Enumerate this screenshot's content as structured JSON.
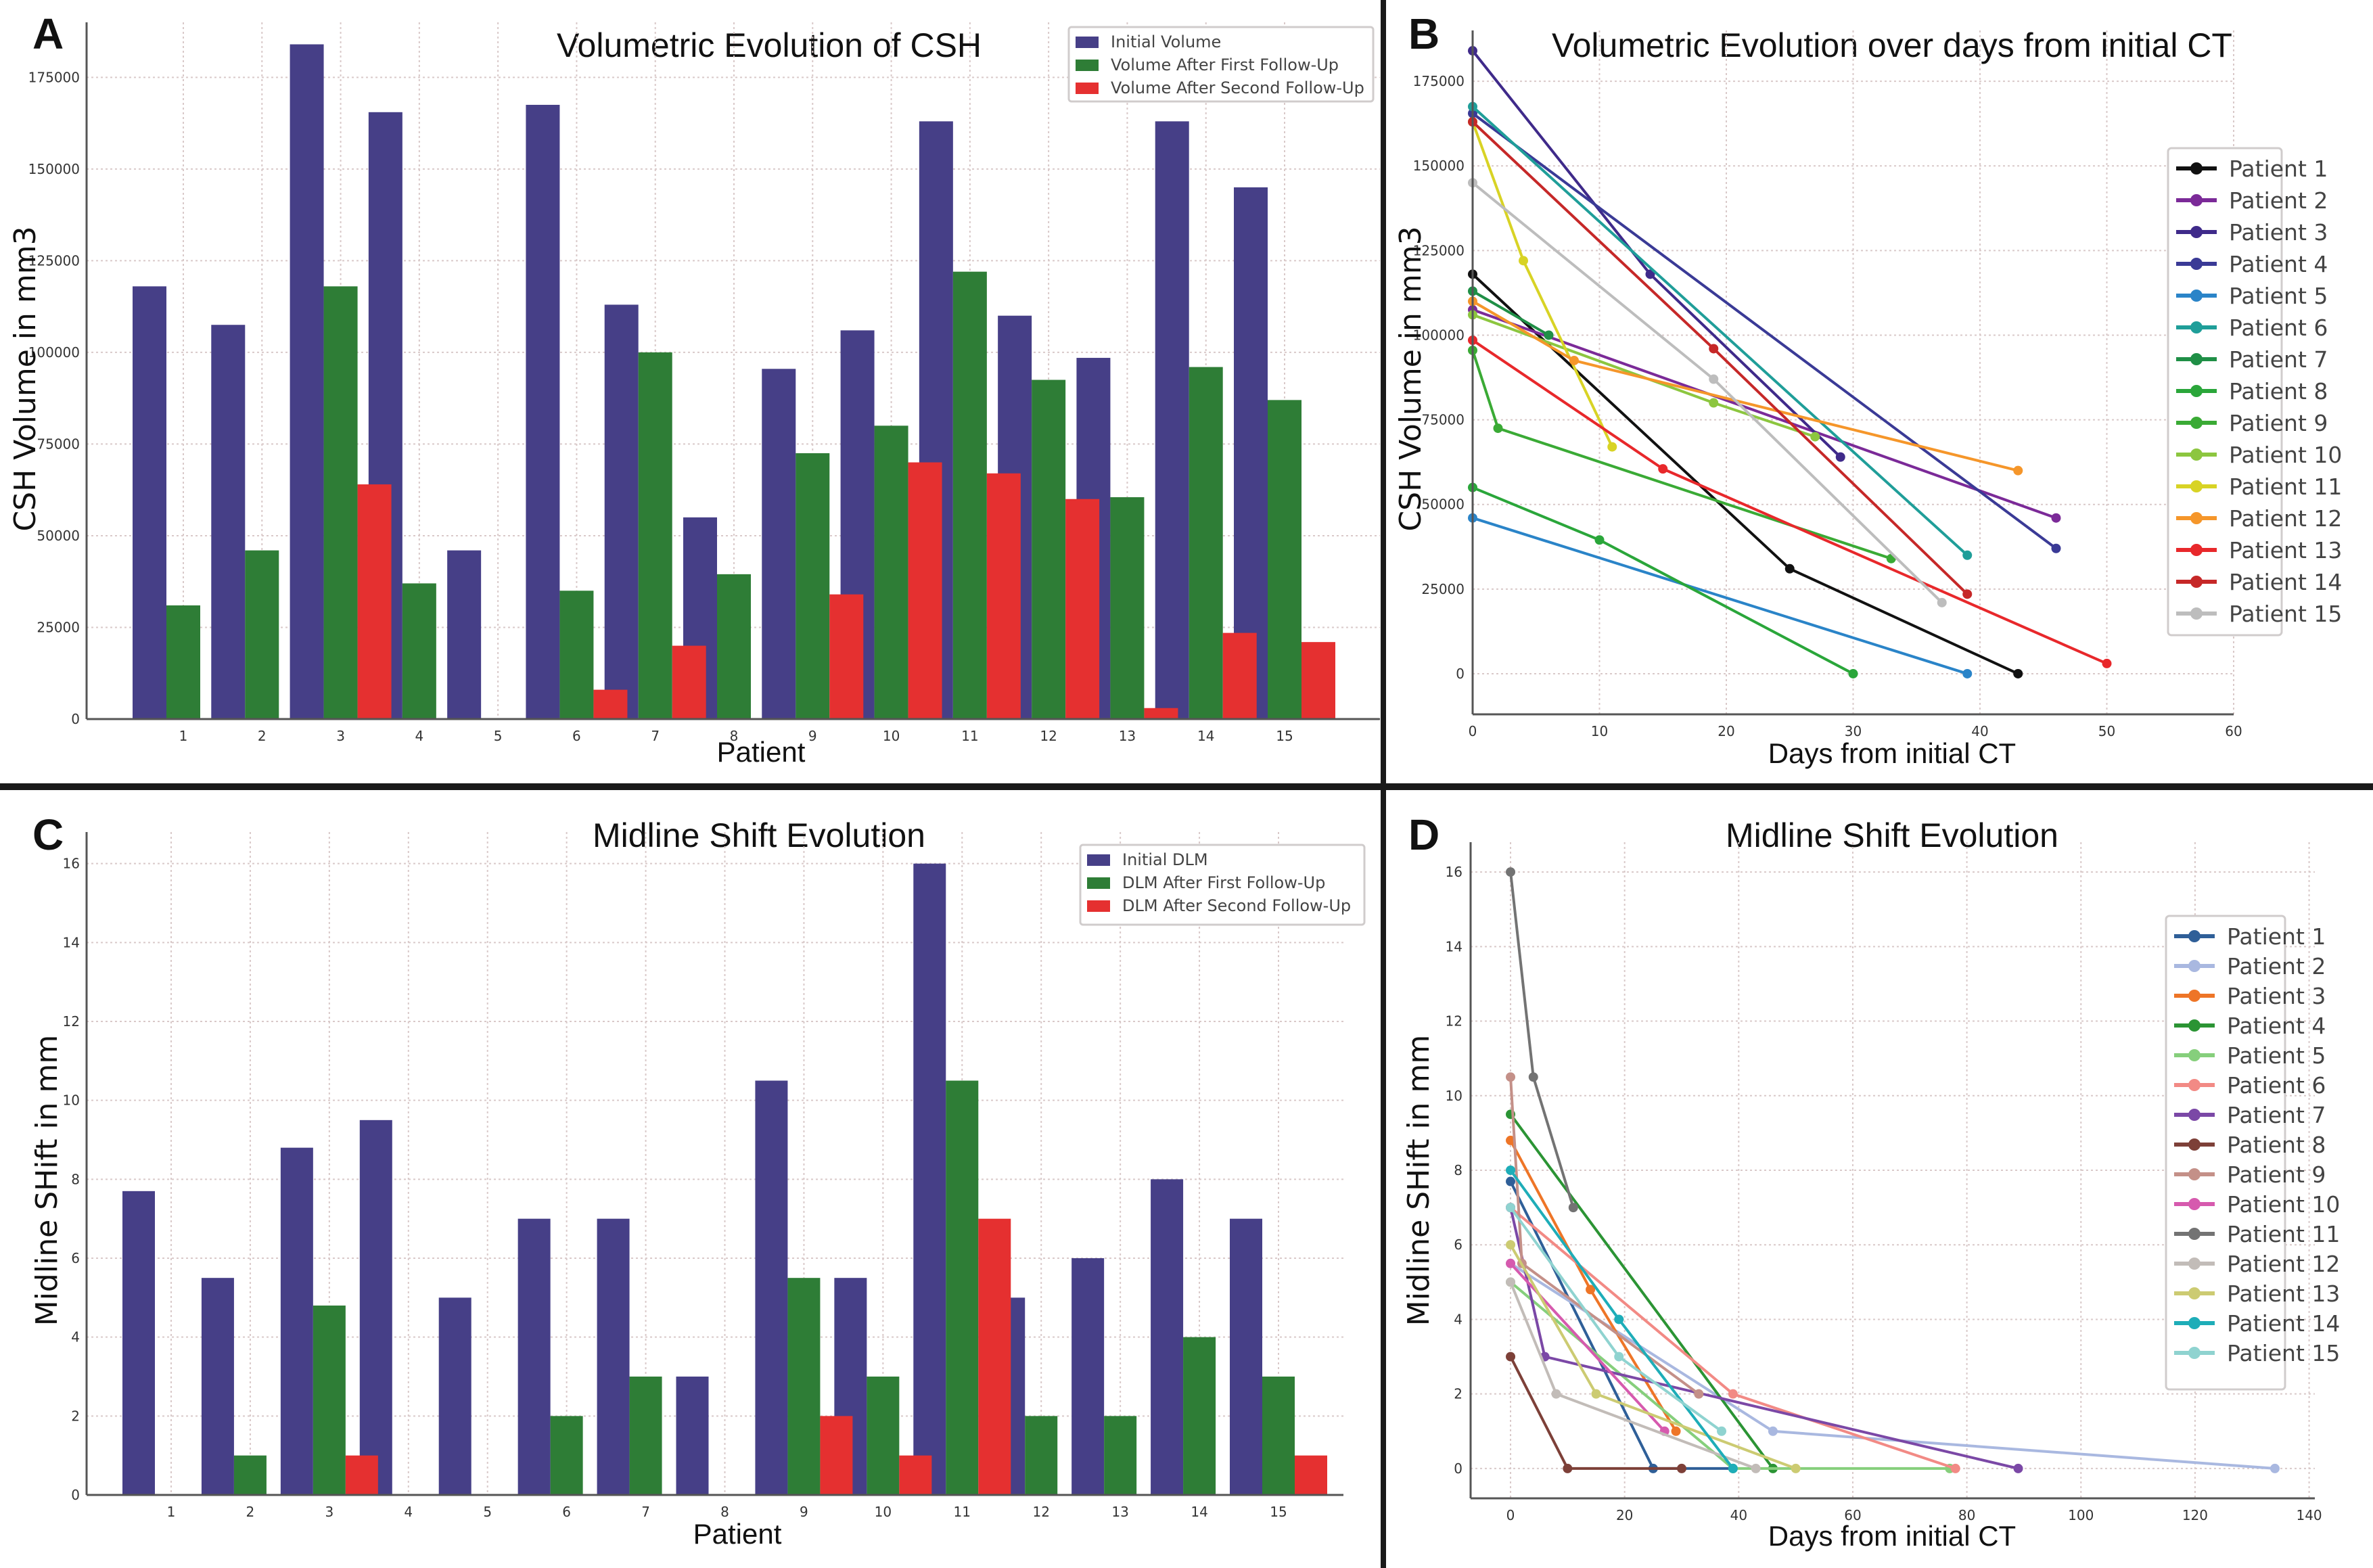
{
  "figure": {
    "panels": [
      "A",
      "B",
      "C",
      "D"
    ]
  },
  "chart_data": [
    {
      "panel": "A",
      "type": "bar",
      "title": "Volumetric Evolution of CSH",
      "xlabel": "Patient",
      "ylabel": "CSH Volume in mm3",
      "categories": [
        "1",
        "2",
        "3",
        "4",
        "5",
        "6",
        "7",
        "8",
        "9",
        "10",
        "11",
        "12",
        "13",
        "14",
        "15"
      ],
      "yticks": [
        0,
        25000,
        50000,
        75000,
        100000,
        125000,
        150000,
        175000
      ],
      "ylim": [
        0,
        190000
      ],
      "grid": true,
      "legend_position": "top-right",
      "series": [
        {
          "name": "Initial Volume",
          "color": "#463f87",
          "values": [
            118000,
            107500,
            184000,
            165500,
            46000,
            167500,
            113000,
            55000,
            95500,
            106000,
            163000,
            110000,
            98500,
            163000,
            145000
          ]
        },
        {
          "name": "Volume After First Follow-Up",
          "color": "#2e7d36",
          "values": [
            31000,
            46000,
            118000,
            37000,
            0,
            35000,
            100000,
            39500,
            72500,
            80000,
            122000,
            92500,
            60500,
            96000,
            87000
          ]
        },
        {
          "name": "Volume After Second Follow-Up",
          "color": "#e53030",
          "values": [
            0,
            0,
            64000,
            0,
            0,
            8000,
            20000,
            0,
            34000,
            70000,
            67000,
            60000,
            3000,
            23500,
            21000
          ]
        }
      ]
    },
    {
      "panel": "B",
      "type": "line",
      "title": "Volumetric Evolution over days from initial CT",
      "xlabel": "Days from initial CT",
      "ylabel": "CSH Volume in mm3",
      "xticks": [
        0,
        10,
        20,
        30,
        40,
        50,
        60
      ],
      "yticks": [
        0,
        25000,
        50000,
        75000,
        100000,
        125000,
        150000,
        175000
      ],
      "xlim": [
        0,
        60
      ],
      "ylim": [
        -12000,
        190000
      ],
      "grid": true,
      "legend_position": "center-right",
      "series": [
        {
          "name": "Patient 1",
          "color": "#111111",
          "points": [
            [
              0,
              118000
            ],
            [
              25,
              31000
            ],
            [
              43,
              0
            ]
          ]
        },
        {
          "name": "Patient 2",
          "color": "#7b2a98",
          "points": [
            [
              0,
              107500
            ],
            [
              46,
              46000
            ]
          ]
        },
        {
          "name": "Patient 3",
          "color": "#3f2a8a",
          "points": [
            [
              0,
              184000
            ],
            [
              14,
              118000
            ],
            [
              29,
              64000
            ]
          ]
        },
        {
          "name": "Patient 4",
          "color": "#3a3a96",
          "points": [
            [
              0,
              165500
            ],
            [
              46,
              37000
            ]
          ]
        },
        {
          "name": "Patient 5",
          "color": "#2a84c8",
          "points": [
            [
              0,
              46000
            ],
            [
              39,
              0
            ]
          ]
        },
        {
          "name": "Patient 6",
          "color": "#1f9e99",
          "points": [
            [
              0,
              167500
            ],
            [
              39,
              35000
            ]
          ]
        },
        {
          "name": "Patient 7",
          "color": "#1f8f46",
          "points": [
            [
              0,
              113000
            ],
            [
              6,
              100000
            ]
          ]
        },
        {
          "name": "Patient 8",
          "color": "#2aa63a",
          "points": [
            [
              0,
              55000
            ],
            [
              10,
              39500
            ],
            [
              30,
              0
            ]
          ]
        },
        {
          "name": "Patient 9",
          "color": "#3aaa35",
          "points": [
            [
              0,
              95500
            ],
            [
              2,
              72500
            ],
            [
              33,
              34000
            ]
          ]
        },
        {
          "name": "Patient 10",
          "color": "#8cc63f",
          "points": [
            [
              0,
              106000
            ],
            [
              19,
              80000
            ],
            [
              27,
              70000
            ]
          ]
        },
        {
          "name": "Patient 11",
          "color": "#d8d325",
          "points": [
            [
              0,
              163000
            ],
            [
              4,
              122000
            ],
            [
              11,
              67000
            ]
          ]
        },
        {
          "name": "Patient 12",
          "color": "#f5962a",
          "points": [
            [
              0,
              110000
            ],
            [
              8,
              92500
            ],
            [
              43,
              60000
            ]
          ]
        },
        {
          "name": "Patient 13",
          "color": "#e8282b",
          "points": [
            [
              0,
              98500
            ],
            [
              15,
              60500
            ],
            [
              50,
              3000
            ]
          ]
        },
        {
          "name": "Patient 14",
          "color": "#c62828",
          "points": [
            [
              0,
              163000
            ],
            [
              19,
              96000
            ],
            [
              39,
              23500
            ]
          ]
        },
        {
          "name": "Patient 15",
          "color": "#bdbdbd",
          "points": [
            [
              0,
              145000
            ],
            [
              19,
              87000
            ],
            [
              37,
              21000
            ]
          ]
        }
      ]
    },
    {
      "panel": "C",
      "type": "bar",
      "title": "Midline Shift Evolution",
      "xlabel": "Patient",
      "ylabel": "Midline SHift in mm",
      "categories": [
        "1",
        "2",
        "3",
        "4",
        "5",
        "6",
        "7",
        "8",
        "9",
        "10",
        "11",
        "12",
        "13",
        "14",
        "15"
      ],
      "yticks": [
        0,
        2,
        4,
        6,
        8,
        10,
        12,
        14,
        16
      ],
      "ylim": [
        0,
        16.8
      ],
      "grid": true,
      "legend_position": "top-right",
      "series": [
        {
          "name": "Initial DLM",
          "color": "#463f87",
          "values": [
            7.7,
            5.5,
            8.8,
            9.5,
            5,
            7,
            7,
            3,
            10.5,
            5.5,
            16,
            5,
            6,
            8,
            7
          ]
        },
        {
          "name": "DLM After First Follow-Up",
          "color": "#2e7d36",
          "values": [
            0,
            1,
            4.8,
            0,
            0,
            2,
            3,
            0,
            5.5,
            3,
            10.5,
            2,
            2,
            4,
            3
          ]
        },
        {
          "name": "DLM After Second Follow-Up",
          "color": "#e53030",
          "values": [
            0,
            0,
            1,
            0,
            0,
            0,
            0,
            0,
            2,
            1,
            7,
            0,
            0,
            0,
            1
          ]
        }
      ]
    },
    {
      "panel": "D",
      "type": "line",
      "title": "Midline Shift Evolution",
      "xlabel": "Days from initial CT",
      "ylabel": "Midline SHift in mm",
      "xticks": [
        0,
        20,
        40,
        60,
        80,
        100,
        120,
        140
      ],
      "yticks": [
        0,
        2,
        4,
        6,
        8,
        10,
        12,
        14,
        16
      ],
      "xlim": [
        -7,
        141
      ],
      "ylim": [
        -0.8,
        16.8
      ],
      "grid": true,
      "legend_position": "center-right",
      "series": [
        {
          "name": "Patient 1",
          "color": "#2f5f98",
          "points": [
            [
              0,
              7.7
            ],
            [
              25,
              0
            ],
            [
              39,
              0
            ]
          ]
        },
        {
          "name": "Patient 2",
          "color": "#a9b8e0",
          "points": [
            [
              0,
              5.5
            ],
            [
              46,
              1
            ],
            [
              134,
              0
            ]
          ]
        },
        {
          "name": "Patient 3",
          "color": "#ee7527",
          "points": [
            [
              0,
              8.8
            ],
            [
              14,
              4.8
            ],
            [
              29,
              1
            ]
          ]
        },
        {
          "name": "Patient 4",
          "color": "#2b9434",
          "points": [
            [
              0,
              9.5
            ],
            [
              46,
              0
            ]
          ]
        },
        {
          "name": "Patient 5",
          "color": "#86cf7c",
          "points": [
            [
              0,
              5
            ],
            [
              39,
              0
            ],
            [
              77,
              0
            ]
          ]
        },
        {
          "name": "Patient 6",
          "color": "#f28a85",
          "points": [
            [
              0,
              7
            ],
            [
              39,
              2
            ],
            [
              78,
              0
            ]
          ]
        },
        {
          "name": "Patient 7",
          "color": "#7b48a6",
          "points": [
            [
              0,
              7
            ],
            [
              6,
              3
            ],
            [
              89,
              0
            ]
          ]
        },
        {
          "name": "Patient 8",
          "color": "#7d4038",
          "points": [
            [
              0,
              3
            ],
            [
              10,
              0
            ],
            [
              30,
              0
            ]
          ]
        },
        {
          "name": "Patient 9",
          "color": "#c49088",
          "points": [
            [
              0,
              10.5
            ],
            [
              2,
              5.5
            ],
            [
              33,
              2
            ]
          ]
        },
        {
          "name": "Patient 10",
          "color": "#d65aae",
          "points": [
            [
              0,
              5.5
            ],
            [
              27,
              1
            ]
          ]
        },
        {
          "name": "Patient 11",
          "color": "#737373",
          "points": [
            [
              0,
              16
            ],
            [
              4,
              10.5
            ],
            [
              11,
              7
            ]
          ]
        },
        {
          "name": "Patient 12",
          "color": "#c2bcb8",
          "points": [
            [
              0,
              5
            ],
            [
              8,
              2
            ],
            [
              43,
              0
            ]
          ]
        },
        {
          "name": "Patient 13",
          "color": "#cccb72",
          "points": [
            [
              0,
              6
            ],
            [
              15,
              2
            ],
            [
              50,
              0
            ]
          ]
        },
        {
          "name": "Patient 14",
          "color": "#1eadb8",
          "points": [
            [
              0,
              8
            ],
            [
              19,
              4
            ],
            [
              39,
              0
            ]
          ]
        },
        {
          "name": "Patient 15",
          "color": "#8fd3d0",
          "points": [
            [
              0,
              7
            ],
            [
              19,
              3
            ],
            [
              37,
              1
            ]
          ]
        }
      ]
    }
  ]
}
